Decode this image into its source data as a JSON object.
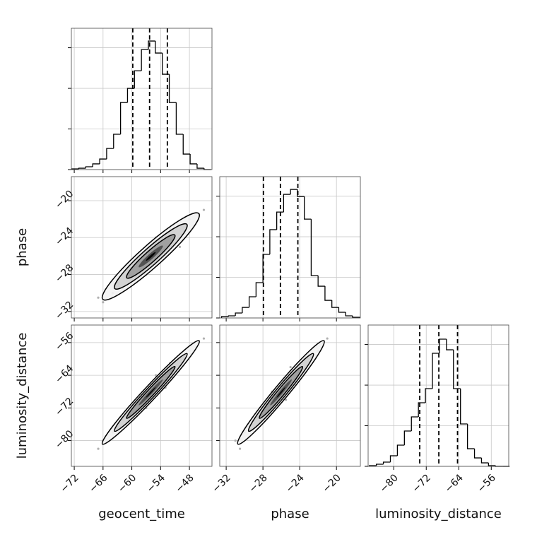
{
  "chart_data": {
    "type": "corner",
    "color": "#000000",
    "point_color": "#b0b0b0",
    "grid": true,
    "hist_ylim": [
      0,
      1740
    ],
    "hist_yticks": [
      0,
      500,
      1000,
      1500
    ],
    "parameters": [
      {
        "name": "geocent_time",
        "lim": [
          -72.6,
          -43.3
        ],
        "ticks": [
          {
            "value": -72,
            "label": "−72"
          },
          {
            "value": -66,
            "label": "−66"
          },
          {
            "value": -60,
            "label": "−60"
          },
          {
            "value": -54,
            "label": "−54"
          },
          {
            "value": -48,
            "label": "−48"
          }
        ],
        "bins": [
          -72.5,
          -71.05,
          -69.6,
          -68.15,
          -66.7,
          -65.25,
          -63.8,
          -62.35,
          -60.9,
          -59.45,
          -58,
          -56.55,
          -55.1,
          -53.65,
          -52.2,
          -50.75,
          -49.3,
          -47.85,
          -46.4,
          -44.95,
          -43.5
        ],
        "counts": [
          9,
          17,
          35,
          70,
          130,
          260,
          435,
          826,
          1000,
          1217,
          1478,
          1583,
          1435,
          1174,
          826,
          435,
          191,
          70,
          17,
          0
        ],
        "quantiles": [
          -59.8,
          -56.3,
          -52.6
        ]
      },
      {
        "name": "phase",
        "lim": [
          -32.7,
          -17.4
        ],
        "ticks": [
          {
            "value": -32,
            "label": "−32"
          },
          {
            "value": -28,
            "label": "−28"
          },
          {
            "value": -24,
            "label": "−24"
          },
          {
            "value": -20,
            "label": "−20"
          }
        ],
        "bins": [
          -32.5,
          -31.75,
          -31,
          -30.25,
          -29.5,
          -28.75,
          -28,
          -27.25,
          -26.5,
          -25.75,
          -25,
          -24.25,
          -23.5,
          -22.75,
          -22,
          -21.25,
          -20.5,
          -19.75,
          -19,
          -18.25,
          -17.5
        ],
        "counts": [
          17,
          26,
          61,
          130,
          261,
          435,
          783,
          1087,
          1304,
          1522,
          1583,
          1496,
          1217,
          522,
          391,
          217,
          130,
          70,
          26,
          9
        ],
        "quantiles": [
          -27.95,
          -26.1,
          -24.2
        ]
      },
      {
        "name": "luminosity_distance",
        "lim": [
          -86.3,
          -51.7
        ],
        "ticks": [
          {
            "value": -80,
            "label": "−80"
          },
          {
            "value": -72,
            "label": "−72"
          },
          {
            "value": -64,
            "label": "−64"
          },
          {
            "value": -56,
            "label": "−56"
          }
        ],
        "bins": [
          -86,
          -84.275,
          -82.55,
          -80.825,
          -79.1,
          -77.375,
          -75.65,
          -73.925,
          -72.2,
          -70.475,
          -68.75,
          -67.025,
          -65.3,
          -63.575,
          -61.85,
          -60.125,
          -58.4,
          -56.675,
          -54.95,
          -53.225,
          -51.5
        ],
        "counts": [
          9,
          26,
          52,
          130,
          261,
          435,
          609,
          783,
          957,
          1392,
          1566,
          1435,
          957,
          522,
          217,
          104,
          43,
          9,
          0,
          0
        ],
        "quantiles": [
          -73.6,
          -68.9,
          -64.3
        ]
      }
    ],
    "samples": [
      [
        -56,
        -52,
        -60,
        -58,
        -54,
        -50,
        -62,
        -57,
        -55,
        -53,
        -59,
        -48,
        -64,
        -56,
        -51,
        -61,
        -54,
        -58,
        -46,
        -66,
        -55,
        -57,
        -53,
        -60,
        -49,
        -63,
        -56,
        -52,
        -59,
        -54,
        -67,
        -45,
        -57,
        -55,
        -50,
        -61,
        -58,
        -53,
        -56,
        -62
      ],
      [
        -26,
        -24.5,
        -28,
        -27,
        -25,
        -23,
        -29.5,
        -26.5,
        -25.5,
        -24,
        -27.5,
        -22,
        -30,
        -25,
        -24,
        -28.5,
        -26,
        -26,
        -21.5,
        -31,
        -27,
        -25.5,
        -25,
        -27,
        -23.5,
        -29,
        -27,
        -23,
        -28,
        -24.5,
        -30.5,
        -21,
        -28,
        -24,
        -25,
        -27.5,
        -27,
        -26,
        -24.5,
        -28
      ],
      [
        -68,
        -63,
        -73,
        -71,
        -66,
        -60,
        -76,
        -69,
        -67,
        -64,
        -72,
        -58,
        -78,
        -66,
        -62,
        -75,
        -67,
        -70,
        -56,
        -80,
        -68,
        -70,
        -63,
        -72,
        -60,
        -77,
        -70,
        -61,
        -74,
        -65,
        -82,
        -55,
        -72,
        -64,
        -62,
        -73,
        -71,
        -67,
        -66,
        -75
      ]
    ]
  }
}
